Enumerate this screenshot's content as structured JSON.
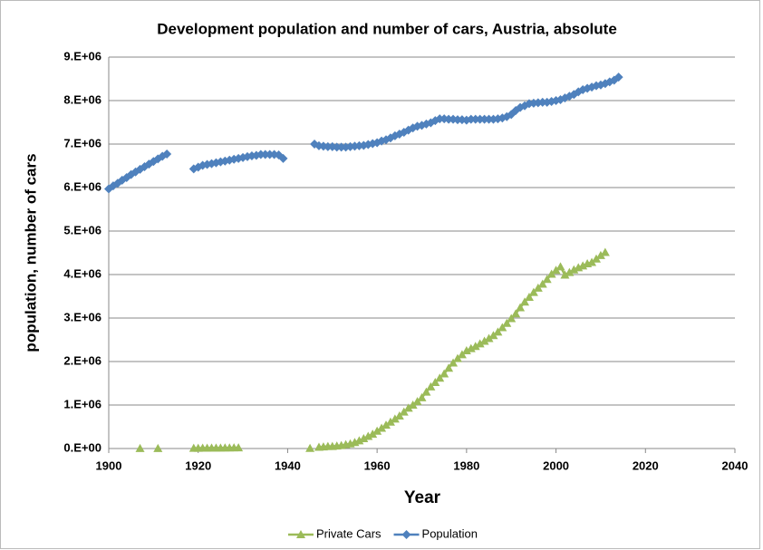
{
  "chart_data": {
    "type": "line",
    "title": "Development population and number of cars, Austria, absolute",
    "xlabel": "Year",
    "ylabel": "population, number of cars",
    "x": [
      1900,
      1901,
      1902,
      1903,
      1904,
      1905,
      1906,
      1907,
      1908,
      1909,
      1910,
      1911,
      1912,
      1913,
      1914,
      1915,
      1916,
      1917,
      1918,
      1919,
      1920,
      1921,
      1922,
      1923,
      1924,
      1925,
      1926,
      1927,
      1928,
      1929,
      1930,
      1931,
      1932,
      1933,
      1934,
      1935,
      1936,
      1937,
      1938,
      1939,
      1940,
      1941,
      1942,
      1943,
      1944,
      1945,
      1946,
      1947,
      1948,
      1949,
      1950,
      1951,
      1952,
      1953,
      1954,
      1955,
      1956,
      1957,
      1958,
      1959,
      1960,
      1961,
      1962,
      1963,
      1964,
      1965,
      1966,
      1967,
      1968,
      1969,
      1970,
      1971,
      1972,
      1973,
      1974,
      1975,
      1976,
      1977,
      1978,
      1979,
      1980,
      1981,
      1982,
      1983,
      1984,
      1985,
      1986,
      1987,
      1988,
      1989,
      1990,
      1991,
      1992,
      1993,
      1994,
      1995,
      1996,
      1997,
      1998,
      1999,
      2000,
      2001,
      2002,
      2003,
      2004,
      2005,
      2006,
      2007,
      2008,
      2009,
      2010,
      2011,
      2012,
      2013,
      2014
    ],
    "series": [
      {
        "name": "Private Cars",
        "color": "#9bbb59",
        "marker": "triangle",
        "values": [
          null,
          null,
          null,
          null,
          null,
          null,
          null,
          2000,
          null,
          null,
          null,
          3000,
          null,
          null,
          null,
          null,
          null,
          null,
          null,
          8000,
          9000,
          10000,
          11000,
          12000,
          13000,
          14000,
          15000,
          16000,
          17000,
          18000,
          null,
          null,
          null,
          null,
          null,
          null,
          null,
          null,
          null,
          null,
          null,
          null,
          null,
          null,
          null,
          5000,
          null,
          30000,
          40000,
          50000,
          50000,
          60000,
          70000,
          90000,
          110000,
          140000,
          180000,
          230000,
          280000,
          330000,
          400000,
          470000,
          540000,
          610000,
          680000,
          750000,
          840000,
          930000,
          1000000,
          1080000,
          1170000,
          1300000,
          1420000,
          1520000,
          1620000,
          1720000,
          1850000,
          1970000,
          2070000,
          2160000,
          2250000,
          2300000,
          2350000,
          2410000,
          2470000,
          2530000,
          2600000,
          2680000,
          2780000,
          2880000,
          2990000,
          3100000,
          3240000,
          3370000,
          3480000,
          3590000,
          3690000,
          3780000,
          3890000,
          4010000,
          4100000,
          4180000,
          3990000,
          4050000,
          4110000,
          4160000,
          4200000,
          4250000,
          4280000,
          4360000,
          4440000,
          4510000,
          null,
          null,
          null
        ]
      },
      {
        "name": "Population",
        "color": "#4f81bd",
        "marker": "diamond",
        "values": [
          5970000,
          6040000,
          6100000,
          6170000,
          6230000,
          6300000,
          6360000,
          6420000,
          6480000,
          6540000,
          6600000,
          6660000,
          6720000,
          6770000,
          null,
          null,
          null,
          null,
          null,
          6430000,
          6470000,
          6510000,
          6530000,
          6550000,
          6570000,
          6590000,
          6610000,
          6630000,
          6650000,
          6670000,
          6690000,
          6710000,
          6730000,
          6740000,
          6760000,
          6760000,
          6760000,
          6760000,
          6750000,
          6670000,
          null,
          null,
          null,
          null,
          null,
          null,
          7000000,
          6960000,
          6950000,
          6940000,
          6940000,
          6930000,
          6930000,
          6930000,
          6940000,
          6950000,
          6960000,
          6970000,
          6990000,
          7010000,
          7030000,
          7070000,
          7100000,
          7140000,
          7190000,
          7230000,
          7270000,
          7320000,
          7370000,
          7410000,
          7430000,
          7460000,
          7490000,
          7540000,
          7580000,
          7580000,
          7570000,
          7570000,
          7560000,
          7560000,
          7550000,
          7570000,
          7570000,
          7570000,
          7570000,
          7570000,
          7570000,
          7580000,
          7600000,
          7630000,
          7680000,
          7770000,
          7840000,
          7880000,
          7930000,
          7940000,
          7950000,
          7960000,
          7960000,
          7980000,
          8000000,
          8020000,
          8060000,
          8100000,
          8140000,
          8200000,
          8250000,
          8280000,
          8310000,
          8340000,
          8360000,
          8390000,
          8430000,
          8470000,
          8540000
        ]
      }
    ],
    "xlim": [
      1900,
      2040
    ],
    "xticks": [
      1900,
      1920,
      1940,
      1960,
      1980,
      2000,
      2020,
      2040
    ],
    "ylim": [
      0,
      9000000
    ],
    "yticks": [
      {
        "value": 0,
        "label": "0.E+00"
      },
      {
        "value": 1000000,
        "label": "1.E+06"
      },
      {
        "value": 2000000,
        "label": "2.E+06"
      },
      {
        "value": 3000000,
        "label": "3.E+06"
      },
      {
        "value": 4000000,
        "label": "4.E+06"
      },
      {
        "value": 5000000,
        "label": "5.E+06"
      },
      {
        "value": 6000000,
        "label": "6.E+06"
      },
      {
        "value": 7000000,
        "label": "7.E+06"
      },
      {
        "value": 8000000,
        "label": "8.E+06"
      },
      {
        "value": 9000000,
        "label": "9.E+06"
      }
    ],
    "grid": true,
    "legend": "bottom"
  }
}
